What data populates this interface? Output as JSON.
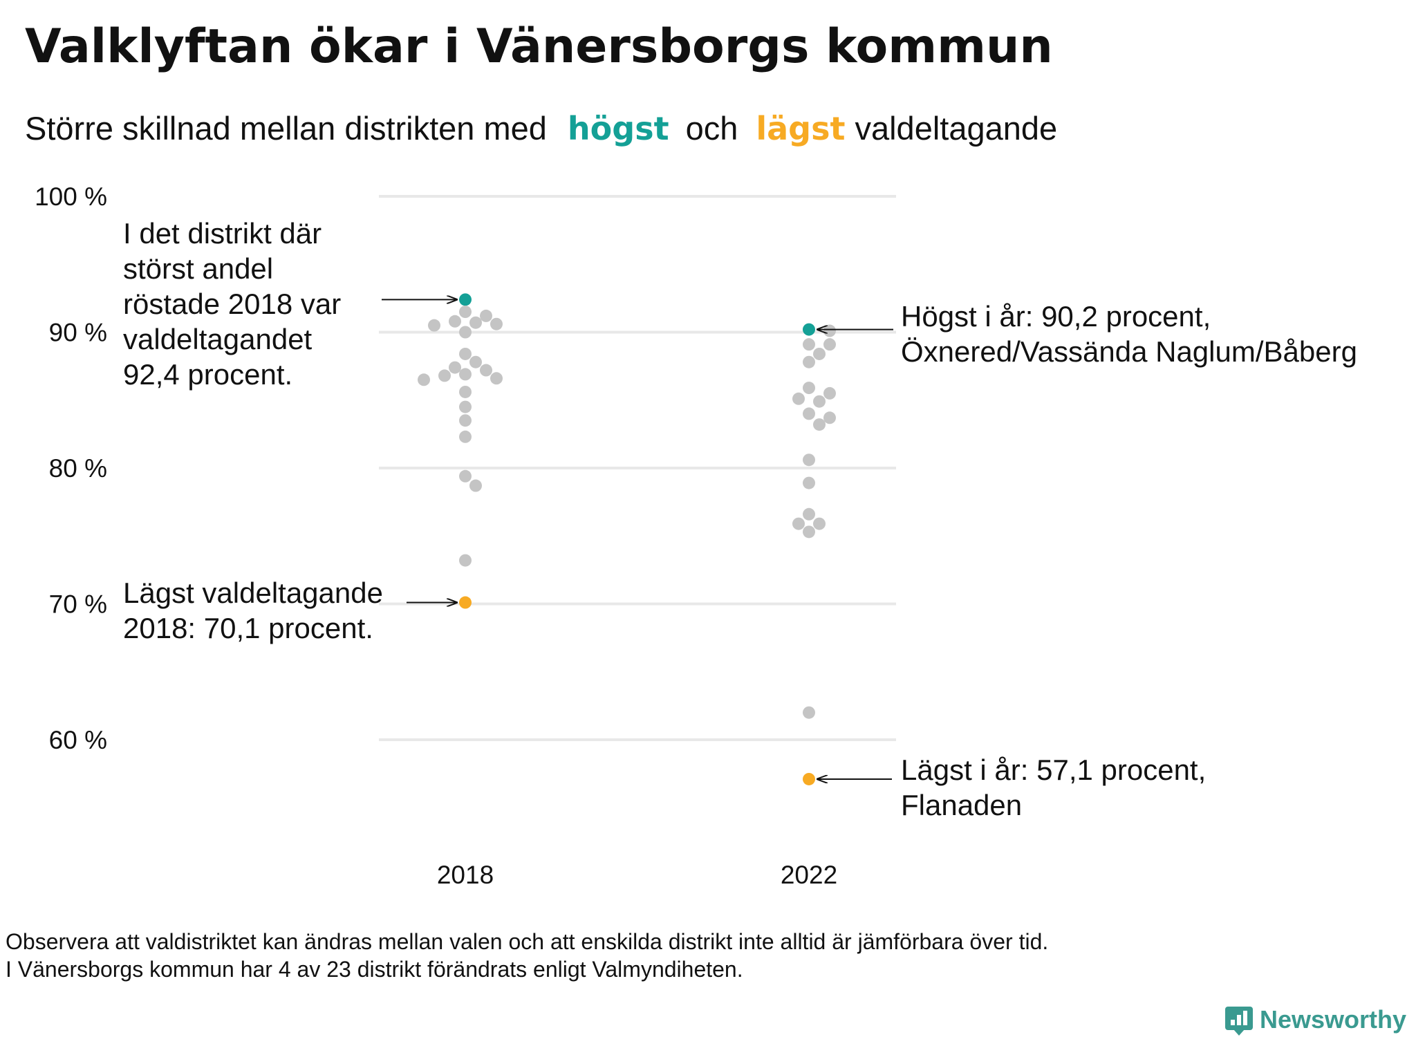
{
  "header": {
    "title": "Valklyftan ökar i Vänersborgs kommun",
    "subtitle_part1": "Större  skillnad  mellan  distrikten   med",
    "subtitle_high": "högst",
    "subtitle_mid": "och",
    "subtitle_low": "lägst",
    "subtitle_end": "valdeltagande"
  },
  "colors": {
    "high": "#14a096",
    "low": "#f7aa23",
    "other": "#c4c4c4",
    "grid": "#e8e8e8",
    "brand": "#3a9a90"
  },
  "annotations": {
    "high_2018": [
      "I det distrikt där",
      "störst andel",
      "röstade 2018 var",
      "valdeltagandet",
      "92,4 procent."
    ],
    "low_2018": [
      "Lägst valdeltagande",
      "2018: 70,1 procent."
    ],
    "high_2022": [
      "Högst i år: 90,2 procent,",
      "Öxnered/Vassända Naglum/Båberg"
    ],
    "low_2022": [
      "Lägst i år: 57,1 procent,",
      "Flanaden"
    ]
  },
  "footer": {
    "line1": "Observera att valdistriktet kan ändras mellan valen och att enskilda distrikt inte alltid är jämförbara över tid.",
    "line2": "I Vänersborgs kommun har 4 av 23 distrikt förändrats enligt Valmyndiheten."
  },
  "brand": {
    "name": "Newsworthy",
    "icon": "bar-chart-speech-icon"
  },
  "chart_data": {
    "type": "scatter",
    "title": "Valklyftan ökar i Vänersborgs kommun",
    "subtitle": "Större skillnad mellan distrikten med högst och lägst valdeltagande",
    "categories": [
      "2018",
      "2022"
    ],
    "y_ticks": [
      100,
      90,
      80,
      70,
      60
    ],
    "y_tick_labels": [
      "100 %",
      "90 %",
      "80 %",
      "70 %",
      "60 %"
    ],
    "ylim": [
      55,
      100
    ],
    "grid": true,
    "legend": "none",
    "series": [
      {
        "year": "2018",
        "highest": 92.4,
        "lowest": 70.1,
        "values": [
          92.4,
          91.5,
          91.2,
          90.8,
          90.7,
          90.6,
          90.5,
          90.0,
          88.4,
          87.8,
          87.4,
          87.2,
          86.9,
          86.8,
          86.6,
          86.5,
          85.6,
          84.5,
          83.5,
          82.3,
          79.4,
          78.7,
          73.2,
          70.1
        ]
      },
      {
        "year": "2022",
        "highest": 90.2,
        "lowest": 57.1,
        "values": [
          90.2,
          90.1,
          89.1,
          89.1,
          88.4,
          87.8,
          85.9,
          85.5,
          85.1,
          84.9,
          84.0,
          83.7,
          83.2,
          80.6,
          78.9,
          76.6,
          75.9,
          75.9,
          75.3,
          62.0,
          57.1
        ]
      }
    ]
  }
}
